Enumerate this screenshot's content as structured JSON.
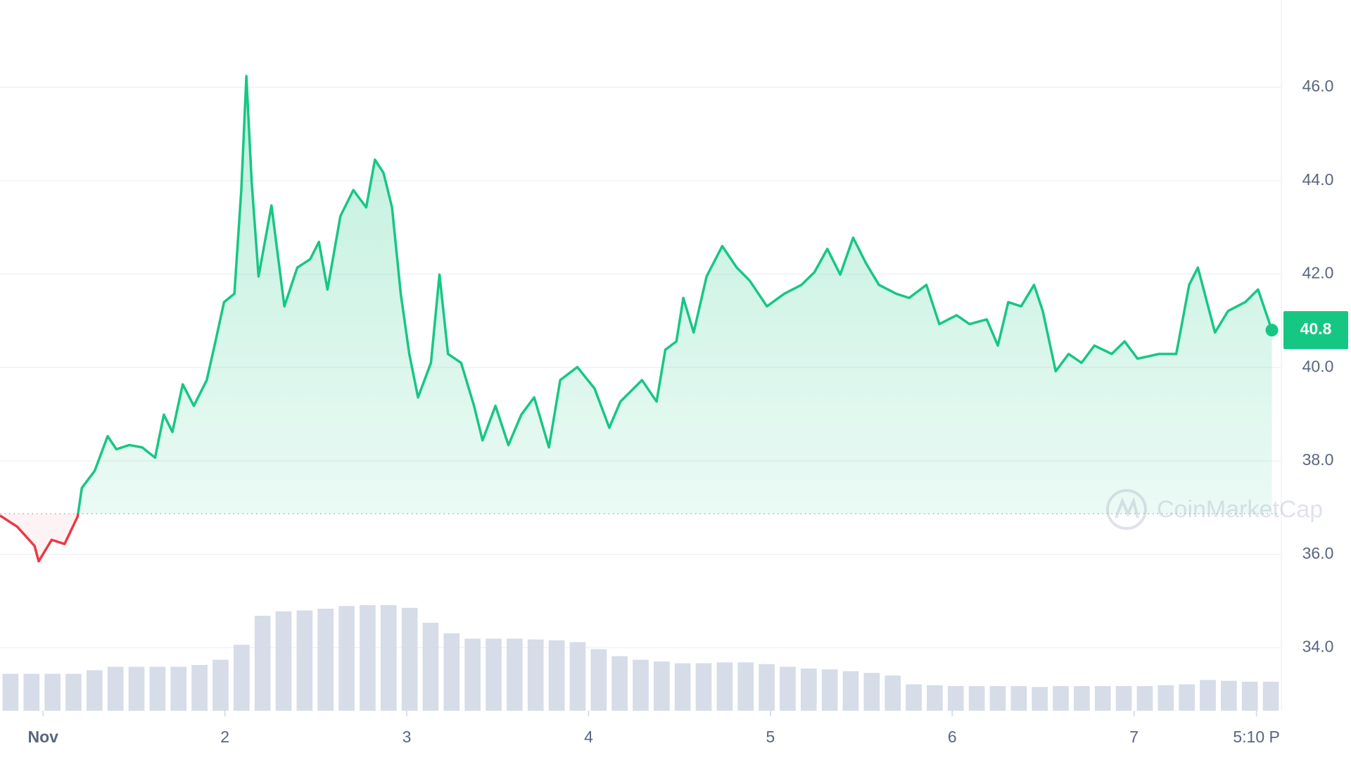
{
  "chart_data": {
    "type": "line",
    "line": {
      "color": "#16c784",
      "below_color": "#ea3943",
      "x": [
        0.763,
        0.858,
        0.953,
        0.976,
        1.047,
        1.118,
        1.19,
        1.213,
        1.284,
        1.355,
        1.403,
        1.474,
        1.545,
        1.616,
        1.664,
        1.711,
        1.768,
        1.829,
        1.9,
        1.948,
        1.995,
        2.052,
        2.09,
        2.118,
        2.147,
        2.185,
        2.256,
        2.327,
        2.398,
        2.469,
        2.517,
        2.564,
        2.635,
        2.706,
        2.777,
        2.825,
        2.872,
        2.919,
        2.967,
        3.014,
        3.062,
        3.133,
        3.18,
        3.227,
        3.299,
        3.37,
        3.417,
        3.488,
        3.559,
        3.63,
        3.701,
        3.782,
        3.844,
        3.938,
        4.033,
        4.114,
        4.175,
        4.294,
        4.374,
        4.422,
        4.483,
        4.521,
        4.578,
        4.649,
        4.735,
        4.815,
        4.886,
        4.981,
        5.076,
        5.171,
        5.242,
        5.313,
        5.384,
        5.455,
        5.526,
        5.597,
        5.692,
        5.763,
        5.858,
        5.929,
        6.024,
        6.095,
        6.19,
        6.251,
        6.308,
        6.379,
        6.45,
        6.498,
        6.569,
        6.64,
        6.711,
        6.782,
        6.877,
        6.948,
        7.019,
        7.137,
        7.232,
        7.303,
        7.351,
        7.445,
        7.517,
        7.611,
        7.682,
        7.758
      ],
      "values": [
        36.83,
        36.59,
        36.18,
        35.85,
        36.31,
        36.22,
        36.81,
        37.42,
        37.79,
        38.53,
        38.25,
        38.34,
        38.29,
        38.07,
        38.99,
        38.62,
        39.64,
        39.18,
        39.73,
        40.56,
        41.4,
        41.58,
        43.8,
        46.24,
        43.98,
        41.95,
        43.47,
        41.31,
        42.14,
        42.32,
        42.69,
        41.67,
        43.24,
        43.8,
        43.43,
        44.45,
        44.17,
        43.43,
        41.58,
        40.29,
        39.36,
        40.1,
        41.99,
        40.29,
        40.1,
        39.18,
        38.44,
        39.18,
        38.34,
        38.99,
        39.36,
        38.29,
        39.73,
        40.01,
        39.55,
        38.71,
        39.27,
        39.73,
        39.27,
        40.38,
        40.56,
        41.49,
        40.75,
        41.95,
        42.6,
        42.14,
        41.86,
        41.31,
        41.58,
        41.77,
        42.04,
        42.54,
        41.99,
        42.78,
        42.23,
        41.77,
        41.58,
        41.49,
        41.77,
        40.93,
        41.12,
        40.93,
        41.03,
        40.47,
        41.4,
        41.31,
        41.77,
        41.21,
        39.92,
        40.29,
        40.1,
        40.47,
        40.29,
        40.56,
        40.19,
        40.29,
        40.29,
        41.77,
        42.14,
        40.75,
        41.21,
        41.4,
        41.67,
        40.8
      ]
    },
    "baseline": 36.87,
    "current_price": 40.8,
    "volume": {
      "color": "#cfd6e4",
      "values": [
        42,
        42,
        42,
        42,
        46,
        50,
        50,
        50,
        50,
        52,
        58,
        75,
        108,
        113,
        114,
        116,
        119,
        120,
        120,
        117,
        100,
        88,
        82,
        82,
        82,
        81,
        80,
        78,
        70,
        62,
        58,
        56,
        54,
        54,
        55,
        55,
        53,
        50,
        48,
        47,
        45,
        43,
        40,
        30,
        29,
        28,
        28,
        28,
        28,
        27,
        28,
        28,
        28,
        28,
        28,
        29,
        30,
        35,
        34,
        33,
        33
      ]
    },
    "watermark": "CoinMarketCap",
    "xlim": [
      0.763,
      7.81
    ],
    "xticks": [
      {
        "value": 1,
        "label": "Nov"
      },
      2,
      3,
      4,
      5,
      6,
      7,
      {
        "value": 7.673,
        "label": "5:10 P"
      }
    ],
    "ylim": [
      32.65,
      47.87
    ],
    "yticks": [
      {
        "value": 34,
        "label": "34.0"
      },
      {
        "value": 36,
        "label": "36.0"
      },
      {
        "value": 38,
        "label": "38.0"
      },
      {
        "value": 40,
        "label": "40.0"
      },
      {
        "value": 42,
        "label": "42.0"
      },
      {
        "value": 44,
        "label": "44.0"
      },
      {
        "value": 46,
        "label": "46.0"
      }
    ],
    "grid": true
  }
}
